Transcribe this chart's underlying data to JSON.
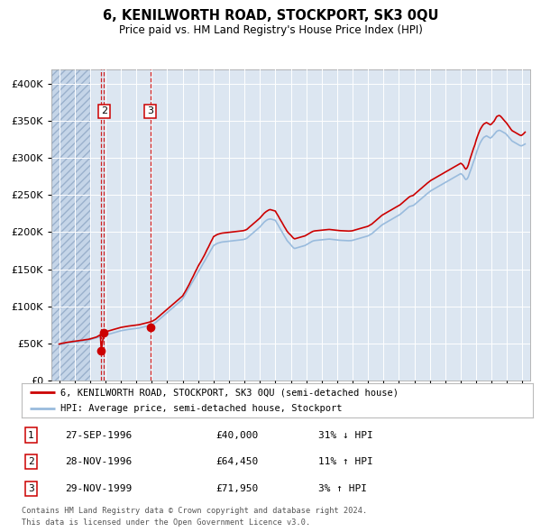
{
  "title": "6, KENILWORTH ROAD, STOCKPORT, SK3 0QU",
  "subtitle": "Price paid vs. HM Land Registry's House Price Index (HPI)",
  "legend_line1": "6, KENILWORTH ROAD, STOCKPORT, SK3 0QU (semi-detached house)",
  "legend_line2": "HPI: Average price, semi-detached house, Stockport",
  "footer1": "Contains HM Land Registry data © Crown copyright and database right 2024.",
  "footer2": "This data is licensed under the Open Government Licence v3.0.",
  "transactions": [
    {
      "num": 1,
      "date": "27-SEP-1996",
      "price": 40000,
      "pct": "31%",
      "dir": "↓",
      "year": 1996.73
    },
    {
      "num": 2,
      "date": "28-NOV-1996",
      "price": 64450,
      "pct": "11%",
      "dir": "↑",
      "year": 1996.9
    },
    {
      "num": 3,
      "date": "29-NOV-1999",
      "price": 71950,
      "pct": "3%",
      "dir": "↑",
      "year": 1999.9
    }
  ],
  "hpi_x": [
    1994.0,
    1994.08,
    1994.17,
    1994.25,
    1994.33,
    1994.42,
    1994.5,
    1994.58,
    1994.67,
    1994.75,
    1994.83,
    1994.92,
    1995.0,
    1995.08,
    1995.17,
    1995.25,
    1995.33,
    1995.42,
    1995.5,
    1995.58,
    1995.67,
    1995.75,
    1995.83,
    1995.92,
    1996.0,
    1996.08,
    1996.17,
    1996.25,
    1996.33,
    1996.42,
    1996.5,
    1996.58,
    1996.67,
    1996.75,
    1996.83,
    1996.92,
    1997.0,
    1997.08,
    1997.17,
    1997.25,
    1997.33,
    1997.42,
    1997.5,
    1997.58,
    1997.67,
    1997.75,
    1997.83,
    1997.92,
    1998.0,
    1998.08,
    1998.17,
    1998.25,
    1998.33,
    1998.42,
    1998.5,
    1998.58,
    1998.67,
    1998.75,
    1998.83,
    1998.92,
    1999.0,
    1999.08,
    1999.17,
    1999.25,
    1999.33,
    1999.42,
    1999.5,
    1999.58,
    1999.67,
    1999.75,
    1999.83,
    1999.92,
    2000.0,
    2000.08,
    2000.17,
    2000.25,
    2000.33,
    2000.42,
    2000.5,
    2000.58,
    2000.67,
    2000.75,
    2000.83,
    2000.92,
    2001.0,
    2001.08,
    2001.17,
    2001.25,
    2001.33,
    2001.42,
    2001.5,
    2001.58,
    2001.67,
    2001.75,
    2001.83,
    2001.92,
    2002.0,
    2002.08,
    2002.17,
    2002.25,
    2002.33,
    2002.42,
    2002.5,
    2002.58,
    2002.67,
    2002.75,
    2002.83,
    2002.92,
    2003.0,
    2003.08,
    2003.17,
    2003.25,
    2003.33,
    2003.42,
    2003.5,
    2003.58,
    2003.67,
    2003.75,
    2003.83,
    2003.92,
    2004.0,
    2004.08,
    2004.17,
    2004.25,
    2004.33,
    2004.42,
    2004.5,
    2004.58,
    2004.67,
    2004.75,
    2004.83,
    2004.92,
    2005.0,
    2005.08,
    2005.17,
    2005.25,
    2005.33,
    2005.42,
    2005.5,
    2005.58,
    2005.67,
    2005.75,
    2005.83,
    2005.92,
    2006.0,
    2006.08,
    2006.17,
    2006.25,
    2006.33,
    2006.42,
    2006.5,
    2006.58,
    2006.67,
    2006.75,
    2006.83,
    2006.92,
    2007.0,
    2007.08,
    2007.17,
    2007.25,
    2007.33,
    2007.42,
    2007.5,
    2007.58,
    2007.67,
    2007.75,
    2007.83,
    2007.92,
    2008.0,
    2008.08,
    2008.17,
    2008.25,
    2008.33,
    2008.42,
    2008.5,
    2008.58,
    2008.67,
    2008.75,
    2008.83,
    2008.92,
    2009.0,
    2009.08,
    2009.17,
    2009.25,
    2009.33,
    2009.42,
    2009.5,
    2009.58,
    2009.67,
    2009.75,
    2009.83,
    2009.92,
    2010.0,
    2010.08,
    2010.17,
    2010.25,
    2010.33,
    2010.42,
    2010.5,
    2010.58,
    2010.67,
    2010.75,
    2010.83,
    2010.92,
    2011.0,
    2011.08,
    2011.17,
    2011.25,
    2011.33,
    2011.42,
    2011.5,
    2011.58,
    2011.67,
    2011.75,
    2011.83,
    2011.92,
    2012.0,
    2012.08,
    2012.17,
    2012.25,
    2012.33,
    2012.42,
    2012.5,
    2012.58,
    2012.67,
    2012.75,
    2012.83,
    2012.92,
    2013.0,
    2013.08,
    2013.17,
    2013.25,
    2013.33,
    2013.42,
    2013.5,
    2013.58,
    2013.67,
    2013.75,
    2013.83,
    2013.92,
    2014.0,
    2014.08,
    2014.17,
    2014.25,
    2014.33,
    2014.42,
    2014.5,
    2014.58,
    2014.67,
    2014.75,
    2014.83,
    2014.92,
    2015.0,
    2015.08,
    2015.17,
    2015.25,
    2015.33,
    2015.42,
    2015.5,
    2015.58,
    2015.67,
    2015.75,
    2015.83,
    2015.92,
    2016.0,
    2016.08,
    2016.17,
    2016.25,
    2016.33,
    2016.42,
    2016.5,
    2016.58,
    2016.67,
    2016.75,
    2016.83,
    2016.92,
    2017.0,
    2017.08,
    2017.17,
    2017.25,
    2017.33,
    2017.42,
    2017.5,
    2017.58,
    2017.67,
    2017.75,
    2017.83,
    2017.92,
    2018.0,
    2018.08,
    2018.17,
    2018.25,
    2018.33,
    2018.42,
    2018.5,
    2018.58,
    2018.67,
    2018.75,
    2018.83,
    2018.92,
    2019.0,
    2019.08,
    2019.17,
    2019.25,
    2019.33,
    2019.42,
    2019.5,
    2019.58,
    2019.67,
    2019.75,
    2019.83,
    2019.92,
    2020.0,
    2020.08,
    2020.17,
    2020.25,
    2020.33,
    2020.42,
    2020.5,
    2020.58,
    2020.67,
    2020.75,
    2020.83,
    2020.92,
    2021.0,
    2021.08,
    2021.17,
    2021.25,
    2021.33,
    2021.42,
    2021.5,
    2021.58,
    2021.67,
    2021.75,
    2021.83,
    2021.92,
    2022.0,
    2022.08,
    2022.17,
    2022.25,
    2022.33,
    2022.42,
    2022.5,
    2022.58,
    2022.67,
    2022.75,
    2022.83,
    2022.92,
    2023.0,
    2023.08,
    2023.17,
    2023.25,
    2023.33,
    2023.42,
    2023.5,
    2023.58,
    2023.67,
    2023.75,
    2023.83,
    2023.92,
    2024.0,
    2024.08,
    2024.17
  ],
  "hpi_v": [
    48000,
    48500,
    49000,
    49200,
    49500,
    50000,
    50200,
    50500,
    50800,
    51000,
    51200,
    51500,
    51800,
    52000,
    52200,
    52500,
    52800,
    53000,
    53200,
    53500,
    53800,
    54000,
    54200,
    54500,
    55000,
    55500,
    56000,
    56500,
    57000,
    57500,
    58000,
    58500,
    59000,
    59500,
    60000,
    60500,
    61000,
    61500,
    62000,
    62500,
    63000,
    63500,
    64000,
    64500,
    65000,
    65500,
    66000,
    66500,
    67000,
    67300,
    67600,
    67900,
    68200,
    68500,
    68800,
    69000,
    69200,
    69400,
    69600,
    69800,
    70000,
    70300,
    70600,
    71000,
    71400,
    71800,
    72200,
    72600,
    73000,
    73500,
    74000,
    74500,
    75000,
    76000,
    77000,
    78000,
    79500,
    81000,
    82500,
    84000,
    85500,
    87000,
    88500,
    90000,
    91500,
    93000,
    94500,
    96000,
    97500,
    99000,
    100500,
    102000,
    103500,
    105000,
    106500,
    108000,
    110000,
    113000,
    116000,
    119000,
    122000,
    125000,
    128000,
    131000,
    134000,
    137000,
    140000,
    143000,
    146000,
    149000,
    152000,
    155000,
    158000,
    161000,
    164000,
    167000,
    170000,
    173000,
    176000,
    179000,
    182000,
    183000,
    184000,
    185000,
    185500,
    186000,
    186500,
    186800,
    187000,
    187200,
    187400,
    187600,
    187800,
    188000,
    188200,
    188400,
    188600,
    188800,
    189000,
    189200,
    189400,
    189600,
    189800,
    190000,
    190500,
    191000,
    192000,
    193500,
    195000,
    196500,
    198000,
    199500,
    201000,
    202500,
    204000,
    205500,
    207000,
    209000,
    211000,
    213000,
    214500,
    216000,
    217000,
    217500,
    217800,
    217500,
    217000,
    216500,
    216000,
    213000,
    210000,
    207000,
    204000,
    201000,
    198000,
    195000,
    192000,
    189000,
    187000,
    185000,
    183000,
    181000,
    179000,
    178000,
    178500,
    179000,
    179500,
    180000,
    180500,
    181000,
    181500,
    182000,
    183000,
    184000,
    185000,
    186000,
    187000,
    188000,
    188500,
    188800,
    189000,
    189200,
    189400,
    189600,
    189800,
    190000,
    190200,
    190400,
    190500,
    190600,
    190700,
    190500,
    190300,
    190100,
    189900,
    189700,
    189500,
    189300,
    189100,
    189000,
    188900,
    188800,
    188700,
    188600,
    188500,
    188500,
    188600,
    188700,
    189000,
    189500,
    190000,
    190500,
    191000,
    191500,
    192000,
    192500,
    193000,
    193500,
    194000,
    194500,
    195000,
    196000,
    197000,
    198000,
    199500,
    201000,
    202500,
    204000,
    205500,
    207000,
    208500,
    210000,
    211000,
    212000,
    213000,
    214000,
    215000,
    216000,
    217000,
    218000,
    219000,
    220000,
    221000,
    222000,
    223000,
    224000,
    225500,
    227000,
    228500,
    230000,
    231500,
    233000,
    234500,
    235000,
    235500,
    236000,
    237000,
    238500,
    240000,
    241500,
    243000,
    244500,
    246000,
    247500,
    249000,
    250500,
    252000,
    253500,
    255000,
    256000,
    257000,
    258000,
    259000,
    260000,
    261000,
    262000,
    263000,
    264000,
    265000,
    266000,
    267000,
    268000,
    269000,
    270000,
    271000,
    272000,
    273000,
    274000,
    275000,
    276000,
    277000,
    278000,
    279000,
    278000,
    276000,
    273000,
    271000,
    272000,
    275000,
    280000,
    285000,
    290000,
    295000,
    300000,
    306000,
    311000,
    316000,
    320000,
    323000,
    326000,
    328000,
    329000,
    330000,
    329000,
    328000,
    327000,
    328000,
    330000,
    332000,
    334000,
    336000,
    337000,
    337500,
    337000,
    336000,
    335000,
    334000,
    333000,
    331000,
    329000,
    327000,
    325000,
    323000,
    322000,
    321000,
    320000,
    319000,
    318000,
    317000,
    316500,
    317000,
    318000,
    319000
  ],
  "price_x": [
    1994.0,
    1994.08,
    1994.17,
    1994.25,
    1994.33,
    1994.42,
    1994.5,
    1994.58,
    1994.67,
    1994.75,
    1994.83,
    1994.92,
    1995.0,
    1995.08,
    1995.17,
    1995.25,
    1995.33,
    1995.42,
    1995.5,
    1995.58,
    1995.67,
    1995.75,
    1995.83,
    1995.92,
    1996.0,
    1996.08,
    1996.17,
    1996.25,
    1996.33,
    1996.42,
    1996.5,
    1996.58,
    1996.67,
    1996.73,
    1996.9,
    1997.0,
    1997.08,
    1997.17,
    1997.25,
    1997.33,
    1997.42,
    1997.5,
    1997.58,
    1997.67,
    1997.75,
    1997.83,
    1997.92,
    1998.0,
    1998.08,
    1998.17,
    1998.25,
    1998.33,
    1998.42,
    1998.5,
    1998.58,
    1998.67,
    1998.75,
    1998.83,
    1998.92,
    1999.0,
    1999.08,
    1999.17,
    1999.25,
    1999.33,
    1999.42,
    1999.5,
    1999.58,
    1999.67,
    1999.75,
    1999.83,
    1999.9,
    2000.0,
    2000.08,
    2000.17,
    2000.25,
    2000.33,
    2000.42,
    2000.5,
    2000.58,
    2000.67,
    2000.75,
    2000.83,
    2000.92,
    2001.0,
    2001.08,
    2001.17,
    2001.25,
    2001.33,
    2001.42,
    2001.5,
    2001.58,
    2001.67,
    2001.75,
    2001.83,
    2001.92,
    2002.0,
    2002.08,
    2002.17,
    2002.25,
    2002.33,
    2002.42,
    2002.5,
    2002.58,
    2002.67,
    2002.75,
    2002.83,
    2002.92,
    2003.0,
    2003.08,
    2003.17,
    2003.25,
    2003.33,
    2003.42,
    2003.5,
    2003.58,
    2003.67,
    2003.75,
    2003.83,
    2003.92,
    2004.0,
    2004.08,
    2004.17,
    2004.25,
    2004.33,
    2004.42,
    2004.5,
    2004.58,
    2004.67,
    2004.75,
    2004.83,
    2004.92,
    2005.0,
    2005.08,
    2005.17,
    2005.25,
    2005.33,
    2005.42,
    2005.5,
    2005.58,
    2005.67,
    2005.75,
    2005.83,
    2005.92,
    2006.0,
    2006.08,
    2006.17,
    2006.25,
    2006.33,
    2006.42,
    2006.5,
    2006.58,
    2006.67,
    2006.75,
    2006.83,
    2006.92,
    2007.0,
    2007.08,
    2007.17,
    2007.25,
    2007.33,
    2007.42,
    2007.5,
    2007.58,
    2007.67,
    2007.75,
    2007.83,
    2007.92,
    2008.0,
    2008.08,
    2008.17,
    2008.25,
    2008.33,
    2008.42,
    2008.5,
    2008.58,
    2008.67,
    2008.75,
    2008.83,
    2008.92,
    2009.0,
    2009.08,
    2009.17,
    2009.25,
    2009.33,
    2009.42,
    2009.5,
    2009.58,
    2009.67,
    2009.75,
    2009.83,
    2009.92,
    2010.0,
    2010.08,
    2010.17,
    2010.25,
    2010.33,
    2010.42,
    2010.5,
    2010.58,
    2010.67,
    2010.75,
    2010.83,
    2010.92,
    2011.0,
    2011.08,
    2011.17,
    2011.25,
    2011.33,
    2011.42,
    2011.5,
    2011.58,
    2011.67,
    2011.75,
    2011.83,
    2011.92,
    2012.0,
    2012.08,
    2012.17,
    2012.25,
    2012.33,
    2012.42,
    2012.5,
    2012.58,
    2012.67,
    2012.75,
    2012.83,
    2012.92,
    2013.0,
    2013.08,
    2013.17,
    2013.25,
    2013.33,
    2013.42,
    2013.5,
    2013.58,
    2013.67,
    2013.75,
    2013.83,
    2013.92,
    2014.0,
    2014.08,
    2014.17,
    2014.25,
    2014.33,
    2014.42,
    2014.5,
    2014.58,
    2014.67,
    2014.75,
    2014.83,
    2014.92,
    2015.0,
    2015.08,
    2015.17,
    2015.25,
    2015.33,
    2015.42,
    2015.5,
    2015.58,
    2015.67,
    2015.75,
    2015.83,
    2015.92,
    2016.0,
    2016.08,
    2016.17,
    2016.25,
    2016.33,
    2016.42,
    2016.5,
    2016.58,
    2016.67,
    2016.75,
    2016.83,
    2016.92,
    2017.0,
    2017.08,
    2017.17,
    2017.25,
    2017.33,
    2017.42,
    2017.5,
    2017.58,
    2017.67,
    2017.75,
    2017.83,
    2017.92,
    2018.0,
    2018.08,
    2018.17,
    2018.25,
    2018.33,
    2018.42,
    2018.5,
    2018.58,
    2018.67,
    2018.75,
    2018.83,
    2018.92,
    2019.0,
    2019.08,
    2019.17,
    2019.25,
    2019.33,
    2019.42,
    2019.5,
    2019.58,
    2019.67,
    2019.75,
    2019.83,
    2019.92,
    2020.0,
    2020.08,
    2020.17,
    2020.25,
    2020.33,
    2020.42,
    2020.5,
    2020.58,
    2020.67,
    2020.75,
    2020.83,
    2020.92,
    2021.0,
    2021.08,
    2021.17,
    2021.25,
    2021.33,
    2021.42,
    2021.5,
    2021.58,
    2021.67,
    2021.75,
    2021.83,
    2021.92,
    2022.0,
    2022.08,
    2022.17,
    2022.25,
    2022.33,
    2022.42,
    2022.5,
    2022.58,
    2022.67,
    2022.75,
    2022.83,
    2022.92,
    2023.0,
    2023.08,
    2023.17,
    2023.25,
    2023.33,
    2023.42,
    2023.5,
    2023.58,
    2023.67,
    2023.75,
    2023.83,
    2023.92,
    2024.0,
    2024.08,
    2024.17
  ],
  "price_v": [
    49000,
    49500,
    50000,
    50200,
    50500,
    51000,
    51200,
    51500,
    51800,
    52000,
    52200,
    52500,
    52800,
    53000,
    53200,
    53500,
    53800,
    54000,
    54200,
    54500,
    54800,
    55000,
    55200,
    55500,
    56000,
    56500,
    57000,
    57500,
    58000,
    58500,
    59500,
    60500,
    61500,
    40000,
    64450,
    65500,
    66000,
    66500,
    67000,
    67500,
    68000,
    68500,
    69000,
    69500,
    70000,
    70500,
    71000,
    71500,
    71800,
    72100,
    72400,
    72700,
    73000,
    73300,
    73500,
    73700,
    73900,
    74100,
    74300,
    74500,
    74800,
    75100,
    75500,
    75900,
    76300,
    76700,
    77100,
    77500,
    78000,
    78500,
    79000,
    79500,
    80500,
    81500,
    82500,
    84000,
    85500,
    87000,
    88500,
    90000,
    91500,
    93000,
    94500,
    96000,
    97500,
    99000,
    100500,
    102000,
    103500,
    105000,
    106500,
    108000,
    109500,
    111000,
    112500,
    114000,
    117000,
    120000,
    123000,
    126000,
    129500,
    133000,
    136500,
    140000,
    143500,
    147000,
    150500,
    154000,
    157000,
    160000,
    163000,
    166000,
    169500,
    173000,
    176500,
    180000,
    183500,
    187000,
    190500,
    194000,
    195000,
    196000,
    197000,
    197500,
    198000,
    198500,
    198800,
    199000,
    199200,
    199400,
    199600,
    199800,
    200000,
    200200,
    200400,
    200600,
    200800,
    201000,
    201200,
    201400,
    201600,
    201800,
    202000,
    202500,
    203000,
    204000,
    205500,
    207000,
    208500,
    210000,
    211500,
    213000,
    214500,
    216000,
    217500,
    219000,
    221000,
    223000,
    225000,
    226500,
    228000,
    229000,
    230000,
    230500,
    230000,
    229500,
    229000,
    228500,
    225500,
    222500,
    219500,
    216500,
    213500,
    210500,
    207500,
    204500,
    201500,
    199500,
    197500,
    196000,
    194000,
    192000,
    191000,
    191500,
    192000,
    192500,
    193000,
    193500,
    194000,
    194500,
    195000,
    196000,
    197000,
    198000,
    199000,
    200000,
    201000,
    201500,
    201800,
    202000,
    202200,
    202400,
    202600,
    202800,
    203000,
    203200,
    203400,
    203500,
    203600,
    203700,
    203500,
    203300,
    203100,
    202900,
    202700,
    202500,
    202300,
    202100,
    202000,
    201900,
    201800,
    201700,
    201600,
    201500,
    201500,
    201600,
    201700,
    202000,
    202500,
    203000,
    203500,
    204000,
    204500,
    205000,
    205500,
    206000,
    206500,
    207000,
    207500,
    208000,
    209000,
    210000,
    211000,
    212500,
    214000,
    215500,
    217000,
    218500,
    220000,
    221500,
    223000,
    224000,
    225000,
    226000,
    227000,
    228000,
    229000,
    230000,
    231000,
    232000,
    233000,
    234000,
    235000,
    236000,
    237000,
    238500,
    240000,
    241500,
    243000,
    244500,
    246000,
    247500,
    248500,
    249000,
    249500,
    251000,
    252500,
    254000,
    255500,
    257000,
    258500,
    260000,
    261500,
    263000,
    264500,
    266000,
    267500,
    269000,
    270000,
    271000,
    272000,
    273000,
    274000,
    275000,
    276000,
    277000,
    278000,
    279000,
    280000,
    281000,
    282000,
    283000,
    284000,
    285000,
    286000,
    287000,
    288000,
    289000,
    290000,
    291000,
    292000,
    293000,
    292000,
    290000,
    287000,
    285000,
    287000,
    291000,
    297000,
    303000,
    308000,
    313000,
    318000,
    324000,
    329000,
    334000,
    338000,
    341000,
    344000,
    346000,
    347000,
    348000,
    347000,
    346000,
    345000,
    346000,
    348000,
    350000,
    353000,
    356000,
    357000,
    357500,
    356500,
    354500,
    352500,
    350500,
    348500,
    346500,
    344000,
    341500,
    339000,
    337000,
    336000,
    335000,
    334000,
    333000,
    332000,
    331000,
    330500,
    331500,
    333000,
    335000
  ],
  "xlim": [
    1993.5,
    2024.5
  ],
  "ylim": [
    0,
    420000
  ],
  "yticks": [
    0,
    50000,
    100000,
    150000,
    200000,
    250000,
    300000,
    350000,
    400000
  ],
  "xticks": [
    1994,
    1995,
    1996,
    1997,
    1998,
    1999,
    2000,
    2001,
    2002,
    2003,
    2004,
    2005,
    2006,
    2007,
    2008,
    2009,
    2010,
    2011,
    2012,
    2013,
    2014,
    2015,
    2016,
    2017,
    2018,
    2019,
    2020,
    2021,
    2022,
    2023,
    2024
  ],
  "hatch_xlim_end": 1996.0,
  "bg_color": "#dce6f1",
  "hatch_color": "#c5d5e8",
  "grid_color": "#ffffff",
  "red_color": "#cc0000",
  "blue_color": "#99bbdd"
}
